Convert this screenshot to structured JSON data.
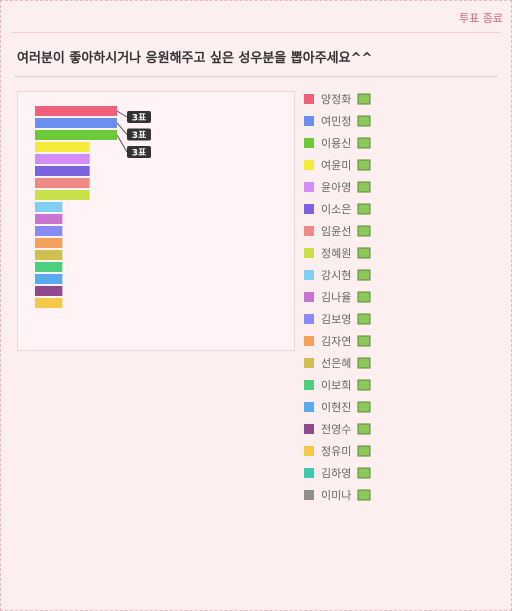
{
  "header": {
    "action": "투표 종료"
  },
  "question": "여러분이 좋아하시거나 응원해주고 싶은 성우분을 뽑아주세요^^",
  "chart_data": {
    "type": "bar",
    "orientation": "horizontal",
    "categories": [
      "양정화",
      "여민정",
      "이용신",
      "여윤미",
      "윤아영",
      "이소은",
      "임윤선",
      "정혜원",
      "강시현",
      "김나율",
      "김보영",
      "김자연",
      "선은혜",
      "이보희",
      "이현진",
      "전영수",
      "정유미",
      "김하영",
      "이미나"
    ],
    "values": [
      3,
      3,
      3,
      2,
      2,
      2,
      2,
      2,
      1,
      1,
      1,
      1,
      1,
      1,
      1,
      1,
      1,
      0,
      0
    ],
    "value_labels": [
      "3표",
      "3표",
      "3표",
      null,
      null,
      null,
      null,
      null,
      null,
      null,
      null,
      null,
      null,
      null,
      null,
      null,
      null,
      null,
      null
    ],
    "colors": [
      "#f0607a",
      "#6b8ff0",
      "#6cc93a",
      "#f5e93a",
      "#d58ef5",
      "#7b63e0",
      "#f08a86",
      "#c8e04a",
      "#7fcff5",
      "#c874d0",
      "#8a8af5",
      "#f5a05a",
      "#cfc050",
      "#4ccf7e",
      "#5aaaf0",
      "#8e4a8a",
      "#f5c84a",
      "#3ec8b0",
      "#8f8f8f"
    ]
  }
}
